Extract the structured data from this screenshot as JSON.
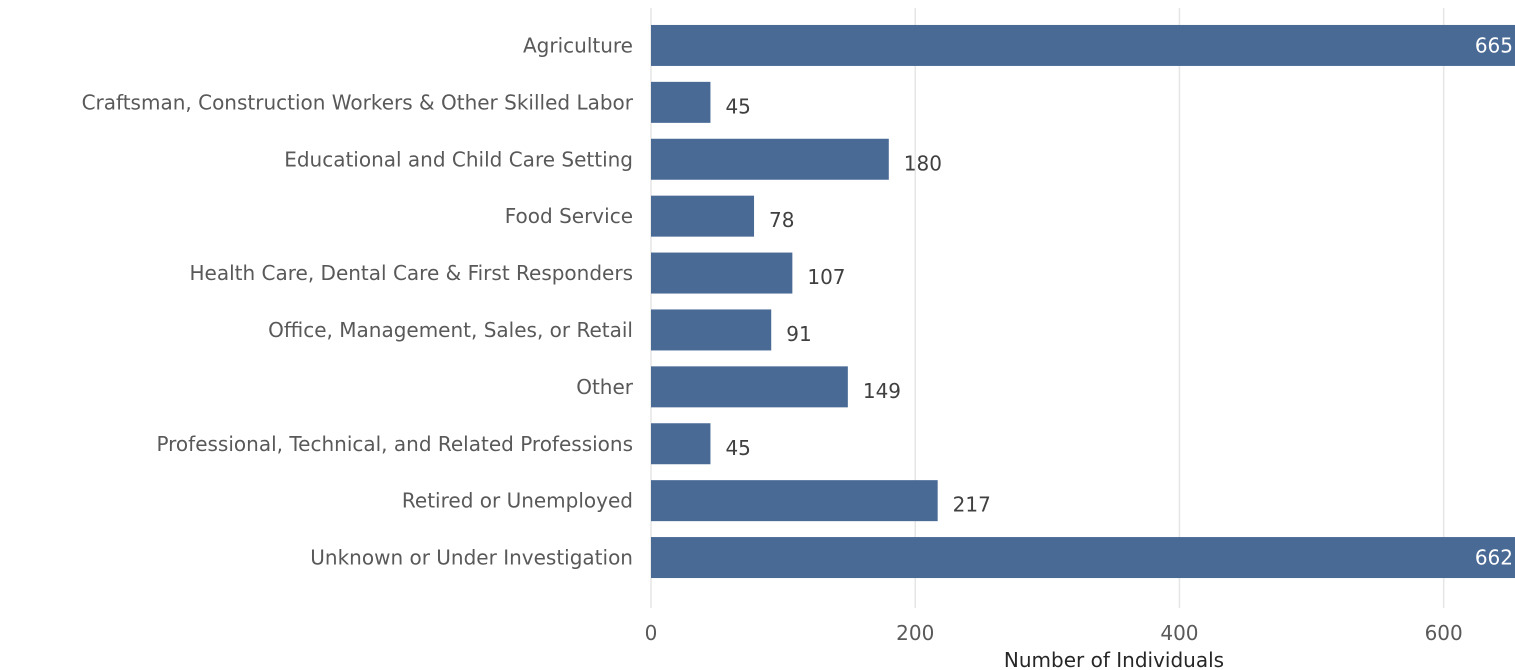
{
  "chart_data": {
    "type": "bar",
    "orientation": "horizontal",
    "categories": [
      "Agriculture",
      "Craftsman, Construction Workers & Other Skilled Labor",
      "Educational and Child Care Setting",
      "Food Service",
      "Health Care, Dental Care & First Responders",
      "Office, Management, Sales, or Retail",
      "Other",
      "Professional, Technical, and Related Professions",
      "Retired or Unemployed",
      "Unknown or Under Investigation"
    ],
    "values": [
      665,
      45,
      180,
      78,
      107,
      91,
      149,
      45,
      217,
      662
    ],
    "data_labels": [
      "665",
      "45",
      "180",
      "78",
      "107",
      "91",
      "149",
      "45",
      "217",
      "662"
    ],
    "title": "",
    "xlabel": "Number of Individuals",
    "ylabel": "",
    "xlim": [
      0,
      654
    ],
    "xticks": [
      0,
      200,
      400,
      600
    ],
    "xtick_labels": [
      "0",
      "200",
      "400",
      "600"
    ],
    "grid": "vertical",
    "legend": "none",
    "colors": {
      "bar": "#4a6a96",
      "label_outside": "#404040",
      "label_inside": "#ffffff",
      "grid": "#e6e6e6",
      "text": "#595959"
    }
  }
}
